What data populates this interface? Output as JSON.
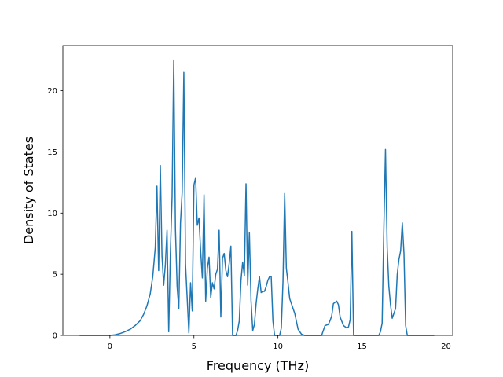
{
  "chart_data": {
    "type": "line",
    "title": "",
    "xlabel": "Frequency (THz)",
    "ylabel": "Density of States",
    "xlim": [
      -2.8,
      20.4
    ],
    "ylim": [
      0,
      23.7
    ],
    "xticks": [
      0,
      5,
      10,
      15,
      20
    ],
    "yticks": [
      0,
      5,
      10,
      15,
      20
    ],
    "grid": false,
    "legend": "none",
    "series": [
      {
        "color": "#1f77b4",
        "x": [
          -1.8,
          -1.0,
          -0.5,
          0.0,
          0.3,
          0.6,
          0.9,
          1.2,
          1.5,
          1.8,
          2.0,
          2.2,
          2.4,
          2.55,
          2.7,
          2.8,
          2.9,
          3.0,
          3.1,
          3.2,
          3.3,
          3.4,
          3.5,
          3.6,
          3.7,
          3.8,
          3.9,
          4.0,
          4.1,
          4.2,
          4.3,
          4.4,
          4.5,
          4.6,
          4.7,
          4.8,
          4.9,
          5.0,
          5.1,
          5.2,
          5.3,
          5.4,
          5.5,
          5.6,
          5.7,
          5.8,
          5.9,
          6.0,
          6.1,
          6.2,
          6.3,
          6.4,
          6.5,
          6.6,
          6.7,
          6.8,
          6.9,
          7.0,
          7.1,
          7.2,
          7.3,
          7.4,
          7.5,
          7.6,
          7.7,
          7.8,
          7.9,
          8.0,
          8.1,
          8.2,
          8.3,
          8.4,
          8.5,
          8.6,
          8.7,
          8.8,
          8.9,
          9.0,
          9.1,
          9.2,
          9.3,
          9.4,
          9.5,
          9.6,
          9.7,
          9.8,
          9.9,
          10.0,
          10.1,
          10.2,
          10.3,
          10.4,
          10.5,
          10.6,
          10.7,
          10.8,
          10.9,
          11.0,
          11.2,
          11.4,
          11.6,
          11.8,
          12.0,
          12.2,
          12.4,
          12.6,
          12.8,
          13.0,
          13.1,
          13.2,
          13.3,
          13.5,
          13.6,
          13.7,
          13.9,
          14.1,
          14.2,
          14.3,
          14.4,
          14.5,
          14.6,
          15.0,
          15.5,
          16.0,
          16.1,
          16.2,
          16.3,
          16.4,
          16.5,
          16.6,
          16.7,
          16.8,
          16.9,
          17.0,
          17.1,
          17.2,
          17.3,
          17.4,
          17.5,
          17.6,
          17.7,
          18.0,
          19.0,
          19.3
        ],
        "y": [
          0,
          0,
          0,
          0,
          0.05,
          0.15,
          0.3,
          0.5,
          0.8,
          1.2,
          1.7,
          2.4,
          3.4,
          4.8,
          7.2,
          12.2,
          5.3,
          13.9,
          6.5,
          4.1,
          5.8,
          8.6,
          0.3,
          6.8,
          11.3,
          22.5,
          8.7,
          4.0,
          2.2,
          9.2,
          11.7,
          21.5,
          5.8,
          3.0,
          0.2,
          4.3,
          2.0,
          12.3,
          12.9,
          9.0,
          9.6,
          6.9,
          4.7,
          11.5,
          2.8,
          5.5,
          6.4,
          3.1,
          4.3,
          3.8,
          5.0,
          5.4,
          8.6,
          1.5,
          6.3,
          6.7,
          5.3,
          4.8,
          5.9,
          7.3,
          0,
          0,
          0,
          0.4,
          1.2,
          4.5,
          6.0,
          4.9,
          12.4,
          4.1,
          8.4,
          2.8,
          0.4,
          0.9,
          2.6,
          3.8,
          4.8,
          3.5,
          3.6,
          3.6,
          4.0,
          4.5,
          4.8,
          4.8,
          1.2,
          0,
          0,
          0,
          0,
          0.6,
          4.4,
          11.6,
          5.5,
          4.3,
          3.0,
          2.6,
          2.2,
          1.8,
          0.5,
          0.1,
          0,
          0,
          0,
          0,
          0,
          0,
          0.8,
          0.9,
          1.2,
          1.6,
          2.6,
          2.8,
          2.5,
          1.5,
          0.8,
          0.6,
          0.7,
          1.3,
          8.5,
          0,
          0,
          0,
          0,
          0,
          0.3,
          1.0,
          8.6,
          15.2,
          7.2,
          4.0,
          2.5,
          1.4,
          1.8,
          2.2,
          5.0,
          6.2,
          6.9,
          9.2,
          6.7,
          0.8,
          0,
          0,
          0,
          0
        ]
      }
    ]
  }
}
